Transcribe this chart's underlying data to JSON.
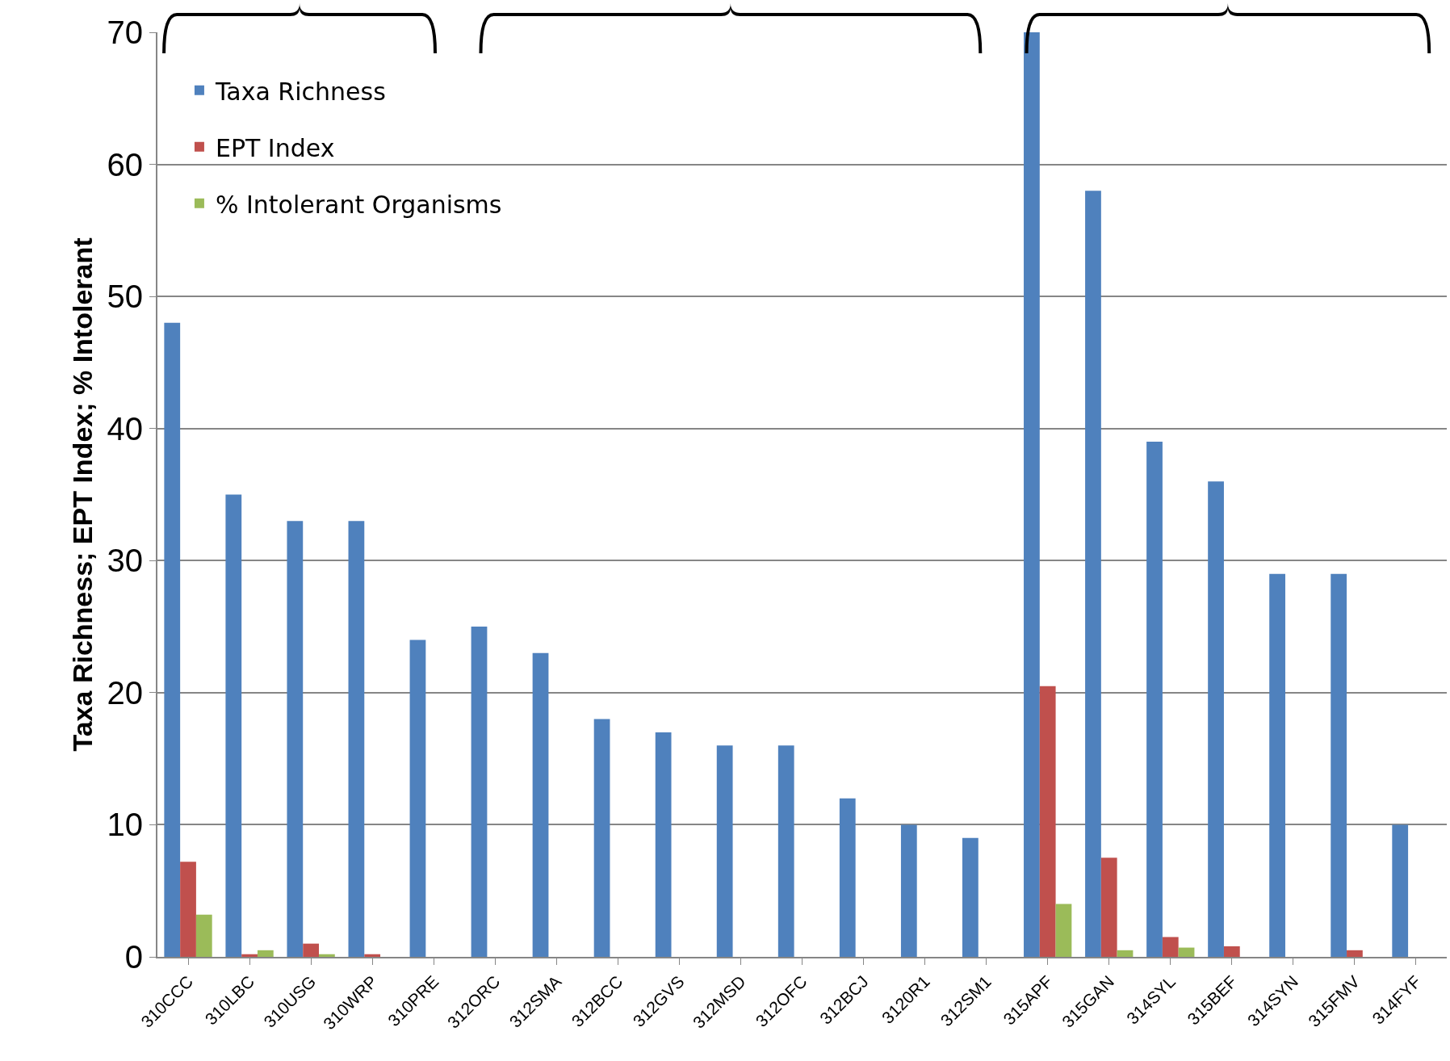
{
  "chart_data": {
    "type": "bar",
    "ylabel": "Taxa Richness; EPT Index; % Intolerant",
    "categories": [
      "310CCC",
      "310LBC",
      "310USG",
      "310WRP",
      "310PRE",
      "312ORC",
      "312SMA",
      "312BCC",
      "312GVS",
      "312MSD",
      "312OFC",
      "312BCJ",
      "3120R1",
      "312SM1",
      "315APF",
      "315GAN",
      "314SYL",
      "315BEF",
      "314SYN",
      "315FMV",
      "314FYF"
    ],
    "series": [
      {
        "name": "Taxa Richness",
        "color": "#4f81bd",
        "values": [
          48,
          35,
          33,
          33,
          24,
          25,
          23,
          18,
          17,
          16,
          16,
          12,
          10,
          9,
          70,
          58,
          39,
          36,
          29,
          29,
          10
        ]
      },
      {
        "name": "EPT Index",
        "color": "#c0504d",
        "values": [
          7.2,
          0.2,
          1.0,
          0.2,
          0,
          0,
          0,
          0,
          0,
          0,
          0,
          0,
          0,
          0,
          20.5,
          7.5,
          1.5,
          0.8,
          0,
          0.5,
          0
        ]
      },
      {
        "name": "% Intolerant Organisms",
        "color": "#9bbb59",
        "values": [
          3.2,
          0.5,
          0.2,
          0,
          0,
          0,
          0,
          0,
          0,
          0,
          0,
          0,
          0,
          0,
          4.0,
          0.5,
          0.7,
          0,
          0,
          0,
          0
        ]
      }
    ],
    "ylim": [
      0,
      70
    ],
    "yticks": [
      0,
      10,
      20,
      30,
      40,
      50,
      60,
      70
    ],
    "grid": "y",
    "legend": "top left"
  }
}
